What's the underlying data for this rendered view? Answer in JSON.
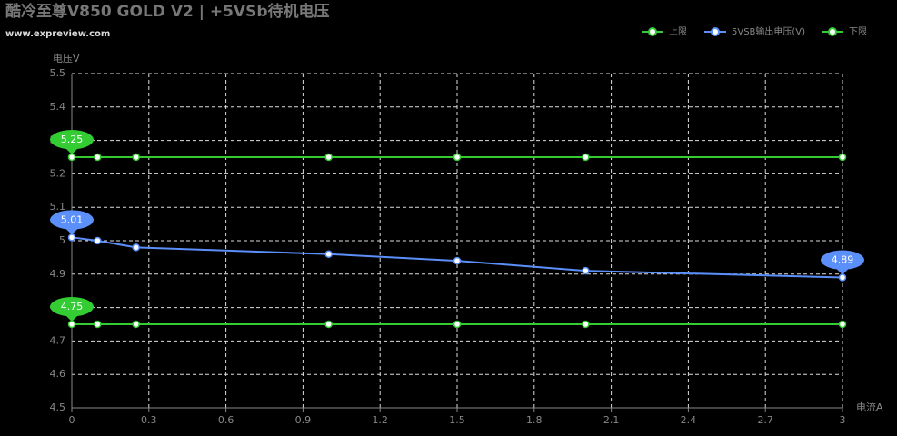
{
  "chart_data": {
    "type": "line",
    "title": "酷冷至尊V850 GOLD V2 | +5VSb待机电压",
    "subtitle": "www.expreview.com",
    "x_label": "电流A",
    "y_label": "电压V",
    "x": [
      0,
      0.1,
      0.25,
      1,
      1.5,
      2,
      3
    ],
    "series": [
      {
        "name": "上限",
        "color": "#33cc33",
        "values": [
          5.25,
          5.25,
          5.25,
          5.25,
          5.25,
          5.25,
          5.25
        ]
      },
      {
        "name": "5VSB输出电压(V)",
        "color": "#5b8ff9",
        "values": [
          5.01,
          5.0,
          4.98,
          4.96,
          4.94,
          4.91,
          4.89
        ]
      },
      {
        "name": "下限",
        "color": "#33cc33",
        "values": [
          4.75,
          4.75,
          4.75,
          4.75,
          4.75,
          4.75,
          4.75
        ]
      }
    ],
    "xlim": [
      0,
      3
    ],
    "xticks": [
      0,
      0.3,
      0.6,
      0.9,
      1.2,
      1.5,
      1.8,
      2.1,
      2.4,
      2.7,
      3
    ],
    "ylim": [
      4.5,
      5.5
    ],
    "yticks": [
      4.5,
      4.6,
      4.7,
      4.8,
      4.9,
      5,
      5.1,
      5.2,
      5.3,
      5.4,
      5.5
    ],
    "grid": true,
    "legend": "top-right",
    "background": "#000000"
  }
}
